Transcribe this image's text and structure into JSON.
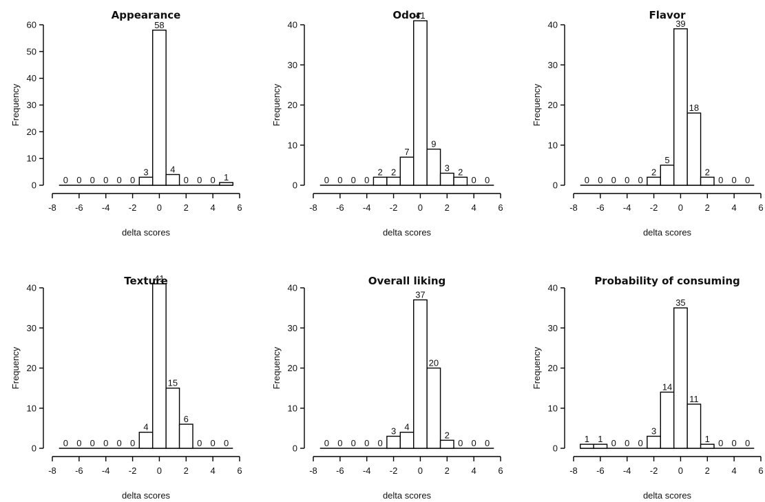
{
  "chart_data": [
    {
      "type": "bar",
      "title": "Appearance",
      "xlabel": "delta scores",
      "ylabel": "Frequency",
      "xlim": [
        -8,
        6
      ],
      "ylim": [
        0,
        60
      ],
      "xticks": [
        "-8",
        "-6",
        "-4",
        "-2",
        "0",
        "2",
        "4",
        "6"
      ],
      "yticks": [
        "0",
        "10",
        "20",
        "30",
        "40",
        "50",
        "60"
      ],
      "bin_starts": [
        -7.5,
        -6.5,
        -5.5,
        -4.5,
        -3.5,
        -2.5,
        -1.5,
        -0.5,
        0.5,
        1.5,
        2.5,
        3.5,
        4.5
      ],
      "bin_width": 1,
      "values": [
        0,
        0,
        0,
        0,
        0,
        0,
        3,
        58,
        4,
        0,
        0,
        0,
        1
      ],
      "value_labels": [
        "0",
        "0",
        "0",
        "0",
        "0",
        "0",
        "3",
        "58",
        "4",
        "0",
        "0",
        "0",
        "1"
      ]
    },
    {
      "type": "bar",
      "title": "Odor",
      "xlabel": "delta scores",
      "ylabel": "Frequency",
      "xlim": [
        -8,
        6
      ],
      "ylim": [
        0,
        40
      ],
      "xticks": [
        "-8",
        "-6",
        "-4",
        "-2",
        "0",
        "2",
        "4",
        "6"
      ],
      "yticks": [
        "0",
        "10",
        "20",
        "30",
        "40"
      ],
      "bin_starts": [
        -7.5,
        -6.5,
        -5.5,
        -4.5,
        -3.5,
        -2.5,
        -1.5,
        -0.5,
        0.5,
        1.5,
        2.5,
        3.5,
        4.5
      ],
      "bin_width": 1,
      "values": [
        0,
        0,
        0,
        0,
        2,
        2,
        7,
        41,
        9,
        3,
        2,
        0,
        0
      ],
      "value_labels": [
        "0",
        "0",
        "0",
        "0",
        "2",
        "2",
        "7",
        "41",
        "9",
        "3",
        "2",
        "0",
        "0"
      ]
    },
    {
      "type": "bar",
      "title": "Flavor",
      "xlabel": "delta scores",
      "ylabel": "Frequency",
      "xlim": [
        -8,
        6
      ],
      "ylim": [
        0,
        40
      ],
      "xticks": [
        "-8",
        "-6",
        "-4",
        "-2",
        "0",
        "2",
        "4",
        "6"
      ],
      "yticks": [
        "0",
        "10",
        "20",
        "30",
        "40"
      ],
      "bin_starts": [
        -7.5,
        -6.5,
        -5.5,
        -4.5,
        -3.5,
        -2.5,
        -1.5,
        -0.5,
        0.5,
        1.5,
        2.5,
        3.5,
        4.5
      ],
      "bin_width": 1,
      "values": [
        0,
        0,
        0,
        0,
        0,
        2,
        5,
        39,
        18,
        2,
        0,
        0,
        0
      ],
      "value_labels": [
        "0",
        "0",
        "0",
        "0",
        "0",
        "2",
        "5",
        "39",
        "18",
        "2",
        "0",
        "0",
        "0"
      ]
    },
    {
      "type": "bar",
      "title": "Texture",
      "xlabel": "delta scores",
      "ylabel": "Frequency",
      "xlim": [
        -8,
        6
      ],
      "ylim": [
        0,
        40
      ],
      "xticks": [
        "-8",
        "-6",
        "-4",
        "-2",
        "0",
        "2",
        "4",
        "6"
      ],
      "yticks": [
        "0",
        "10",
        "20",
        "30",
        "40"
      ],
      "bin_starts": [
        -7.5,
        -6.5,
        -5.5,
        -4.5,
        -3.5,
        -2.5,
        -1.5,
        -0.5,
        0.5,
        1.5,
        2.5,
        3.5,
        4.5
      ],
      "bin_width": 1,
      "values": [
        0,
        0,
        0,
        0,
        0,
        0,
        4,
        41,
        15,
        6,
        0,
        0,
        0
      ],
      "value_labels": [
        "0",
        "0",
        "0",
        "0",
        "0",
        "0",
        "4",
        "41",
        "15",
        "6",
        "0",
        "0",
        "0"
      ]
    },
    {
      "type": "bar",
      "title": "Overall liking",
      "xlabel": "delta scores",
      "ylabel": "Frequency",
      "xlim": [
        -8,
        6
      ],
      "ylim": [
        0,
        40
      ],
      "xticks": [
        "-8",
        "-6",
        "-4",
        "-2",
        "0",
        "2",
        "4",
        "6"
      ],
      "yticks": [
        "0",
        "10",
        "20",
        "30",
        "40"
      ],
      "bin_starts": [
        -7.5,
        -6.5,
        -5.5,
        -4.5,
        -3.5,
        -2.5,
        -1.5,
        -0.5,
        0.5,
        1.5,
        2.5,
        3.5,
        4.5
      ],
      "bin_width": 1,
      "values": [
        0,
        0,
        0,
        0,
        0,
        3,
        4,
        37,
        20,
        2,
        0,
        0,
        0
      ],
      "value_labels": [
        "0",
        "0",
        "0",
        "0",
        "0",
        "3",
        "4",
        "37",
        "20",
        "2",
        "0",
        "0",
        "0"
      ]
    },
    {
      "type": "bar",
      "title": "Probability of consuming",
      "xlabel": "delta scores",
      "ylabel": "Frequency",
      "xlim": [
        -8,
        6
      ],
      "ylim": [
        0,
        40
      ],
      "xticks": [
        "-8",
        "-6",
        "-4",
        "-2",
        "0",
        "2",
        "4",
        "6"
      ],
      "yticks": [
        "0",
        "10",
        "20",
        "30",
        "40"
      ],
      "bin_starts": [
        -7.5,
        -6.5,
        -5.5,
        -4.5,
        -3.5,
        -2.5,
        -1.5,
        -0.5,
        0.5,
        1.5,
        2.5,
        3.5,
        4.5
      ],
      "bin_width": 1,
      "values": [
        1,
        1,
        0,
        0,
        0,
        3,
        14,
        35,
        11,
        1,
        0,
        0,
        0
      ],
      "value_labels": [
        "1",
        "1",
        "0",
        "0",
        "0",
        "3",
        "14",
        "35",
        "11",
        "1",
        "0",
        "0",
        "0"
      ]
    }
  ]
}
